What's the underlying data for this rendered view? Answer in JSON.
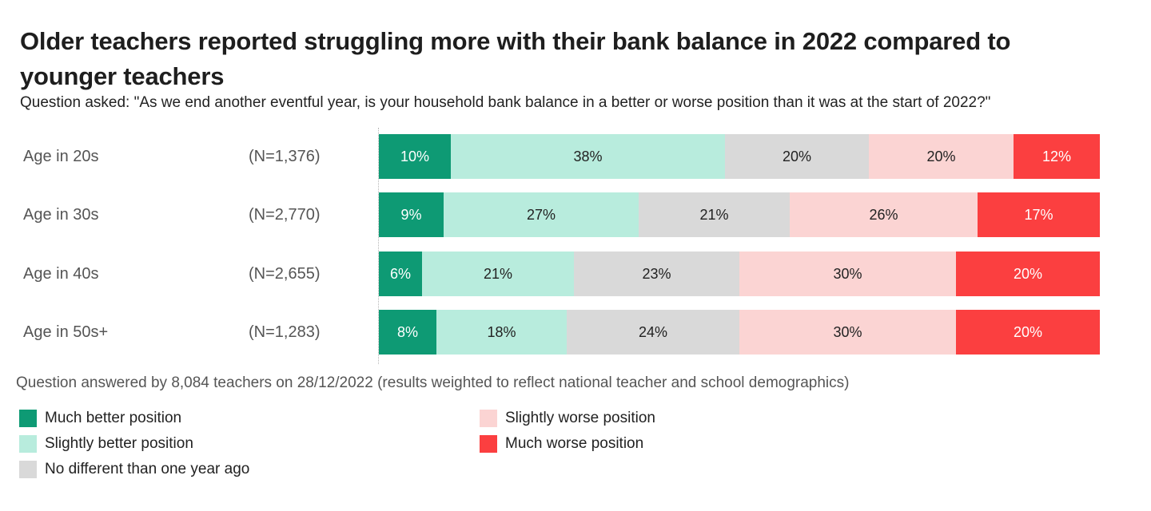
{
  "title": "Older teachers reported struggling more with their bank balance in 2022 compared to younger teachers",
  "subtitle": "Question asked: \"As we end another eventful year, is your household bank balance in a better or worse position than it was at the start of 2022?\"",
  "note": "Question answered by 8,084 teachers on 28/12/2022 (results weighted to reflect national teacher and school demographics)",
  "colors": {
    "much_better": "#0e9a74",
    "slightly_better": "#b8ecdd",
    "no_different": "#d9d9d9",
    "slightly_worse": "#fbd4d3",
    "much_worse": "#fb3f40"
  },
  "chart_data": {
    "type": "bar",
    "orientation": "horizontal",
    "stacked": true,
    "normalized": true,
    "categories": [
      "Age in 20s",
      "Age in 30s",
      "Age in 40s",
      "Age in 50s+"
    ],
    "sample_sizes": [
      "(N=1,376)",
      "(N=2,770)",
      "(N=2,655)",
      "(N=1,283)"
    ],
    "series": [
      {
        "name": "Much better position",
        "color": "#0e9a74",
        "text_color": "#ffffff",
        "values": [
          10,
          9,
          6,
          8
        ],
        "labels": [
          "10%",
          "9%",
          "6%",
          "8%"
        ]
      },
      {
        "name": "Slightly better position",
        "color": "#b8ecdd",
        "text_color": "#222222",
        "values": [
          38,
          27,
          21,
          18
        ],
        "labels": [
          "38%",
          "27%",
          "21%",
          "18%"
        ]
      },
      {
        "name": "No different than one year ago",
        "color": "#d9d9d9",
        "text_color": "#222222",
        "values": [
          20,
          21,
          23,
          24
        ],
        "labels": [
          "20%",
          "21%",
          "23%",
          "24%"
        ]
      },
      {
        "name": "Slightly worse position",
        "color": "#fbd4d3",
        "text_color": "#222222",
        "values": [
          20,
          26,
          30,
          30
        ],
        "labels": [
          "20%",
          "26%",
          "30%",
          "30%"
        ]
      },
      {
        "name": "Much worse position",
        "color": "#fb3f40",
        "text_color": "#ffffff",
        "values": [
          12,
          17,
          20,
          20
        ],
        "labels": [
          "12%",
          "17%",
          "20%",
          "20%"
        ]
      }
    ],
    "legend_position": "bottom",
    "grid": false
  }
}
